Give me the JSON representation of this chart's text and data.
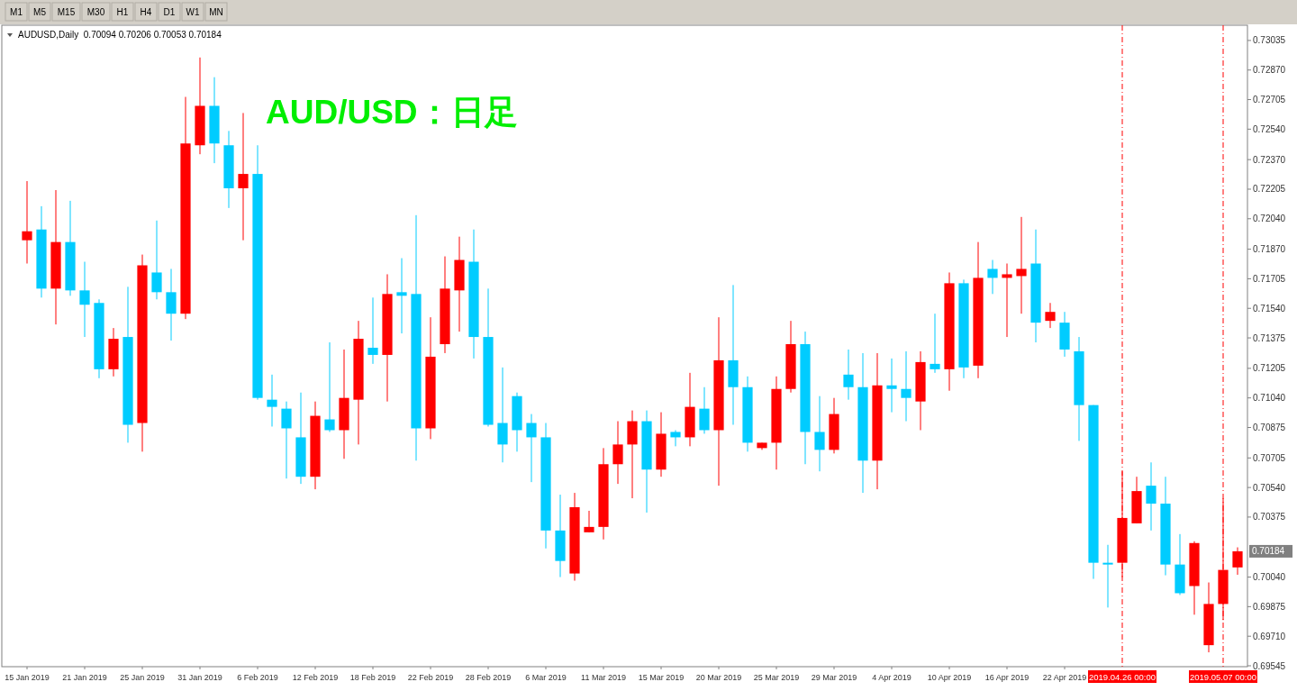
{
  "chart_data": {
    "type": "candlestick",
    "title": "AUD/USD：日足",
    "subtitle": "AUDUSD,Daily  0.70094 0.70206 0.70053 0.70184",
    "annotations": [
      "M1",
      "M5",
      "M15",
      "M30",
      "H1",
      "H4",
      "D1",
      "W1",
      "MN",
      "0.70184"
    ],
    "categories": [
      "15 Jan 2019",
      null,
      null,
      null,
      "21 Jan 2019",
      null,
      null,
      null,
      "25 Jan 2019",
      null,
      null,
      null,
      "31 Jan 2019",
      null,
      null,
      null,
      "6 Feb 2019",
      null,
      null,
      null,
      "12 Feb 2019",
      null,
      null,
      null,
      "18 Feb 2019",
      null,
      null,
      null,
      "22 Feb 2019",
      null,
      null,
      null,
      "28 Feb 2019",
      null,
      null,
      null,
      "6 Mar 2019",
      null,
      null,
      null,
      "11 Mar 2019",
      null,
      null,
      null,
      "15 Mar 2019",
      null,
      null,
      null,
      "20 Mar 2019",
      null,
      null,
      null,
      "25 Mar 2019",
      null,
      null,
      null,
      "29 Mar 2019",
      null,
      null,
      null,
      "4 Apr 2019",
      null,
      null,
      null,
      "10 Apr 2019",
      null,
      null,
      null,
      "16 Apr 2019",
      null,
      null,
      null,
      "22 Apr 2019",
      null,
      null,
      null,
      "2019.04.26 00:00",
      null,
      null,
      null,
      null,
      null,
      null,
      "2019.05.07 00:00",
      null
    ],
    "ohlc": [
      [
        0.7192,
        0.7225,
        0.7179,
        0.7197
      ],
      [
        0.7198,
        0.7211,
        0.716,
        0.7165
      ],
      [
        0.7165,
        0.722,
        0.7145,
        0.7191
      ],
      [
        0.7191,
        0.7214,
        0.7161,
        0.7164
      ],
      [
        0.7164,
        0.718,
        0.7138,
        0.7156
      ],
      [
        0.7157,
        0.7159,
        0.7115,
        0.712
      ],
      [
        0.712,
        0.7143,
        0.7116,
        0.7137
      ],
      [
        0.7138,
        0.7166,
        0.7079,
        0.7089
      ],
      [
        0.709,
        0.7184,
        0.7074,
        0.7178
      ],
      [
        0.7174,
        0.7203,
        0.7159,
        0.7163
      ],
      [
        0.7163,
        0.7176,
        0.7136,
        0.7151
      ],
      [
        0.7151,
        0.7272,
        0.7148,
        0.7246
      ],
      [
        0.7245,
        0.7294,
        0.724,
        0.7267
      ],
      [
        0.7267,
        0.7283,
        0.7235,
        0.7246
      ],
      [
        0.7245,
        0.7253,
        0.721,
        0.7221
      ],
      [
        0.7221,
        0.7263,
        0.7192,
        0.7229
      ],
      [
        0.7229,
        0.7245,
        0.7103,
        0.7104
      ],
      [
        0.7103,
        0.7117,
        0.7088,
        0.7099
      ],
      [
        0.7098,
        0.7102,
        0.7059,
        0.7087
      ],
      [
        0.7082,
        0.7107,
        0.7056,
        0.706
      ],
      [
        0.706,
        0.7102,
        0.7053,
        0.7094
      ],
      [
        0.7092,
        0.7135,
        0.7085,
        0.7086
      ],
      [
        0.7086,
        0.7131,
        0.707,
        0.7104
      ],
      [
        0.7103,
        0.7147,
        0.7078,
        0.7137
      ],
      [
        0.7132,
        0.716,
        0.7123,
        0.7128
      ],
      [
        0.7128,
        0.7173,
        0.7102,
        0.7162
      ],
      [
        0.7163,
        0.7182,
        0.714,
        0.7161
      ],
      [
        0.7162,
        0.7206,
        0.7069,
        0.7087
      ],
      [
        0.7087,
        0.7149,
        0.7081,
        0.7127
      ],
      [
        0.7134,
        0.7183,
        0.7129,
        0.7165
      ],
      [
        0.7164,
        0.7194,
        0.7141,
        0.7181
      ],
      [
        0.718,
        0.7198,
        0.7126,
        0.7138
      ],
      [
        0.7138,
        0.7165,
        0.7088,
        0.7089
      ],
      [
        0.709,
        0.7121,
        0.7068,
        0.7078
      ],
      [
        0.7105,
        0.7107,
        0.7074,
        0.7086
      ],
      [
        0.709,
        0.7095,
        0.7057,
        0.7082
      ],
      [
        0.7082,
        0.709,
        0.702,
        0.703
      ],
      [
        0.703,
        0.705,
        0.7004,
        0.7013
      ],
      [
        0.7006,
        0.7051,
        0.7002,
        0.7043
      ],
      [
        0.7029,
        0.7041,
        0.7029,
        0.7032
      ],
      [
        0.7032,
        0.7076,
        0.7025,
        0.7067
      ],
      [
        0.7067,
        0.7091,
        0.7056,
        0.7078
      ],
      [
        0.7078,
        0.7097,
        0.7048,
        0.7091
      ],
      [
        0.7091,
        0.7097,
        0.704,
        0.7064
      ],
      [
        0.7064,
        0.7096,
        0.706,
        0.7084
      ],
      [
        0.7085,
        0.7086,
        0.7077,
        0.7082
      ],
      [
        0.7082,
        0.7118,
        0.7077,
        0.7099
      ],
      [
        0.7098,
        0.711,
        0.7084,
        0.7086
      ],
      [
        0.7086,
        0.7149,
        0.7055,
        0.7125
      ],
      [
        0.7125,
        0.7167,
        0.7089,
        0.711
      ],
      [
        0.711,
        0.7116,
        0.7074,
        0.7079
      ],
      [
        0.7076,
        0.7079,
        0.7075,
        0.7079
      ],
      [
        0.7079,
        0.7116,
        0.7064,
        0.7109
      ],
      [
        0.7109,
        0.7147,
        0.7107,
        0.7134
      ],
      [
        0.7134,
        0.7141,
        0.7067,
        0.7085
      ],
      [
        0.7085,
        0.7105,
        0.7063,
        0.7075
      ],
      [
        0.7075,
        0.7104,
        0.7073,
        0.7095
      ],
      [
        0.7117,
        0.7131,
        0.7103,
        0.711
      ],
      [
        0.711,
        0.7129,
        0.7051,
        0.7069
      ],
      [
        0.7069,
        0.7129,
        0.7053,
        0.7111
      ],
      [
        0.7111,
        0.7126,
        0.7096,
        0.7109
      ],
      [
        0.7109,
        0.713,
        0.7091,
        0.7104
      ],
      [
        0.7102,
        0.713,
        0.7086,
        0.7124
      ],
      [
        0.7123,
        0.7151,
        0.7118,
        0.712
      ],
      [
        0.712,
        0.7174,
        0.7108,
        0.7168
      ],
      [
        0.7168,
        0.717,
        0.7115,
        0.7121
      ],
      [
        0.7122,
        0.7191,
        0.7115,
        0.7171
      ],
      [
        0.7176,
        0.7181,
        0.7162,
        0.7171
      ],
      [
        0.7171,
        0.7179,
        0.7138,
        0.7173
      ],
      [
        0.7172,
        0.7205,
        0.7151,
        0.7176
      ],
      [
        0.7179,
        0.7198,
        0.7135,
        0.7146
      ],
      [
        0.7147,
        0.7157,
        0.7143,
        0.7152
      ],
      [
        0.7146,
        0.7152,
        0.7127,
        0.7131
      ],
      [
        0.713,
        0.7138,
        0.708,
        0.71
      ],
      [
        0.71,
        0.71,
        0.7003,
        0.7012
      ],
      [
        0.7012,
        0.7022,
        0.6987,
        0.7011
      ],
      [
        0.7012,
        0.7063,
        0.7004,
        0.7037
      ],
      [
        0.7034,
        0.706,
        0.7034,
        0.7052
      ],
      [
        0.7055,
        0.7068,
        0.703,
        0.7045
      ],
      [
        0.7045,
        0.706,
        0.7005,
        0.7011
      ],
      [
        0.7011,
        0.7028,
        0.6994,
        0.6995
      ],
      [
        0.6999,
        0.7024,
        0.6983,
        0.7023
      ],
      [
        0.6966,
        0.7001,
        0.6962,
        0.6989
      ],
      [
        0.6989,
        0.7048,
        0.698,
        0.7008
      ],
      [
        0.70094,
        0.70206,
        0.70053,
        0.70184
      ]
    ],
    "colors": [
      "#ff0000",
      "#00ccff",
      "#ff0000",
      "#00ccff",
      "#00ccff",
      "#00ccff",
      "#ff0000",
      "#00ccff",
      "#ff0000",
      "#00ccff",
      "#00ccff",
      "#ff0000",
      "#ff0000",
      "#00ccff",
      "#00ccff",
      "#ff0000",
      "#00ccff",
      "#00ccff",
      "#00ccff",
      "#00ccff",
      "#ff0000",
      "#00ccff",
      "#ff0000",
      "#ff0000",
      "#00ccff",
      "#ff0000",
      "#00ccff",
      "#00ccff",
      "#ff0000",
      "#ff0000",
      "#ff0000",
      "#00ccff",
      "#00ccff",
      "#00ccff",
      "#00ccff",
      "#00ccff",
      "#00ccff",
      "#00ccff",
      "#ff0000",
      "#ff0000",
      "#ff0000",
      "#ff0000",
      "#ff0000",
      "#00ccff",
      "#ff0000",
      "#00ccff",
      "#ff0000",
      "#00ccff",
      "#ff0000",
      "#00ccff",
      "#00ccff",
      "#ff0000",
      "#ff0000",
      "#ff0000",
      "#00ccff",
      "#00ccff",
      "#ff0000",
      "#00ccff",
      "#00ccff",
      "#ff0000",
      "#00ccff",
      "#00ccff",
      "#ff0000",
      "#00ccff",
      "#ff0000",
      "#00ccff",
      "#ff0000",
      "#00ccff",
      "#ff0000",
      "#ff0000",
      "#00ccff",
      "#ff0000",
      "#00ccff",
      "#00ccff",
      "#00ccff",
      "#00ccff",
      "#ff0000",
      "#ff0000",
      "#00ccff",
      "#00ccff",
      "#00ccff",
      "#ff0000",
      "#ff0000",
      "#ff0000",
      "#ff0000"
    ],
    "ylim": [
      0.6954,
      0.7312
    ],
    "yticks": [
      0.73035,
      {
        "value": 0.7287,
        "label": "0.72870"
      },
      0.72705,
      {
        "value": 0.7254,
        "label": "0.72540"
      },
      {
        "value": 0.7237,
        "label": "0.72370"
      },
      0.72205,
      {
        "value": 0.7204,
        "label": "0.72040"
      },
      {
        "value": 0.7187,
        "label": "0.71870"
      },
      0.71705,
      {
        "value": 0.7154,
        "label": "0.71540"
      },
      0.71375,
      0.71205,
      {
        "value": 0.7104,
        "label": "0.71040"
      },
      0.70875,
      0.70705,
      {
        "value": 0.7054,
        "label": "0.70540"
      },
      0.70375,
      {
        "value": 0.7004,
        "label": "0.70040"
      },
      0.69875,
      {
        "value": 0.6971,
        "label": "0.69710"
      },
      0.69545
    ],
    "ref_lines": [
      {
        "axis": "x",
        "value": "2019.04.26 00:00",
        "color": "#ff0000",
        "line_style": "dashed"
      },
      {
        "axis": "x",
        "value": "2019.05.07 00:00",
        "color": "#ff0000",
        "line_style": "dashed"
      }
    ]
  }
}
